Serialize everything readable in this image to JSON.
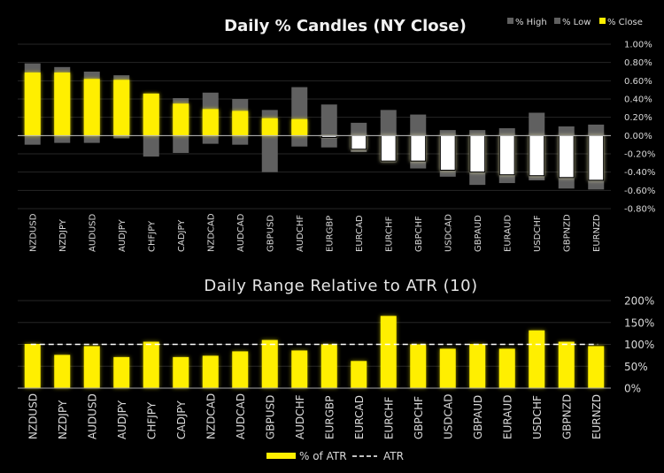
{
  "chart_data": [
    {
      "type": "bar",
      "subtype": "candle",
      "title": "Daily % Candles (NY Close)",
      "xlabel": "",
      "ylabel": "",
      "ylim": [
        -0.8,
        1.0
      ],
      "yticks": [
        "1.00%",
        "0.80%",
        "0.60%",
        "0.40%",
        "0.20%",
        "0.00%",
        "-0.20%",
        "-0.40%",
        "-0.60%",
        "-0.80%"
      ],
      "ytick_values": [
        1.0,
        0.8,
        0.6,
        0.4,
        0.2,
        0.0,
        -0.2,
        -0.4,
        -0.6,
        -0.8
      ],
      "grid": true,
      "legend": {
        "placement": "top-right",
        "entries": [
          "% High",
          "% Low",
          "% Close"
        ]
      },
      "colors": {
        "range": "#606060",
        "up": "#ffef00",
        "down": "#ffffff",
        "glow": "#e8e2a0"
      },
      "categories": [
        "NZDUSD",
        "NZDJPY",
        "AUDUSD",
        "AUDJPY",
        "CHFJPY",
        "CADJPY",
        "NZDCAD",
        "AUDCAD",
        "GBPUSD",
        "AUDCHF",
        "EURGBP",
        "EURCAD",
        "EURCHF",
        "GBPCHF",
        "USDCAD",
        "GBPAUD",
        "EURAUD",
        "USDCHF",
        "GBPNZD",
        "EURNZD"
      ],
      "series": [
        {
          "name": "% High",
          "values": [
            0.79,
            0.75,
            0.7,
            0.66,
            0.46,
            0.41,
            0.47,
            0.4,
            0.28,
            0.53,
            0.34,
            0.14,
            0.28,
            0.23,
            0.06,
            0.06,
            0.08,
            0.25,
            0.1,
            0.12
          ]
        },
        {
          "name": "% Low",
          "values": [
            -0.1,
            -0.08,
            -0.08,
            -0.03,
            -0.23,
            -0.19,
            -0.09,
            -0.1,
            -0.4,
            -0.12,
            -0.13,
            -0.18,
            -0.29,
            -0.36,
            -0.45,
            -0.54,
            -0.52,
            -0.49,
            -0.58,
            -0.59
          ]
        },
        {
          "name": "% Close",
          "values": [
            0.69,
            0.69,
            0.62,
            0.61,
            0.46,
            0.35,
            0.29,
            0.27,
            0.19,
            0.18,
            -0.02,
            -0.15,
            -0.28,
            -0.28,
            -0.38,
            -0.4,
            -0.43,
            -0.44,
            -0.46,
            -0.49
          ]
        }
      ]
    },
    {
      "type": "bar",
      "title": "Daily Range Relative to ATR (10)",
      "xlabel": "",
      "ylabel": "",
      "ylim": [
        0,
        200
      ],
      "yticks": [
        "200%",
        "150%",
        "100%",
        "50%",
        "0%"
      ],
      "ytick_values": [
        200,
        150,
        100,
        50,
        0
      ],
      "grid": true,
      "legend": {
        "placement": "bottom-center",
        "entries": [
          "% of ATR",
          "ATR"
        ]
      },
      "colors": {
        "bar": "#ffef00",
        "atr": "#ffffff"
      },
      "categories": [
        "NZDUSD",
        "NZDJPY",
        "AUDUSD",
        "AUDJPY",
        "CHFJPY",
        "CADJPY",
        "NZDCAD",
        "AUDCAD",
        "GBPUSD",
        "AUDCHF",
        "EURGBP",
        "EURCAD",
        "EURCHF",
        "GBPCHF",
        "USDCAD",
        "GBPAUD",
        "EURAUD",
        "USDCHF",
        "GBPNZD",
        "EURNZD"
      ],
      "series": [
        {
          "name": "% of ATR",
          "values": [
            101,
            76,
            96,
            71,
            106,
            71,
            74,
            84,
            110,
            86,
            100,
            62,
            165,
            100,
            90,
            101,
            90,
            132,
            106,
            96
          ]
        },
        {
          "name": "ATR",
          "values": [
            100,
            100,
            100,
            100,
            100,
            100,
            100,
            100,
            100,
            100,
            100,
            100,
            100,
            100,
            100,
            100,
            100,
            100,
            100,
            100
          ]
        }
      ]
    }
  ]
}
